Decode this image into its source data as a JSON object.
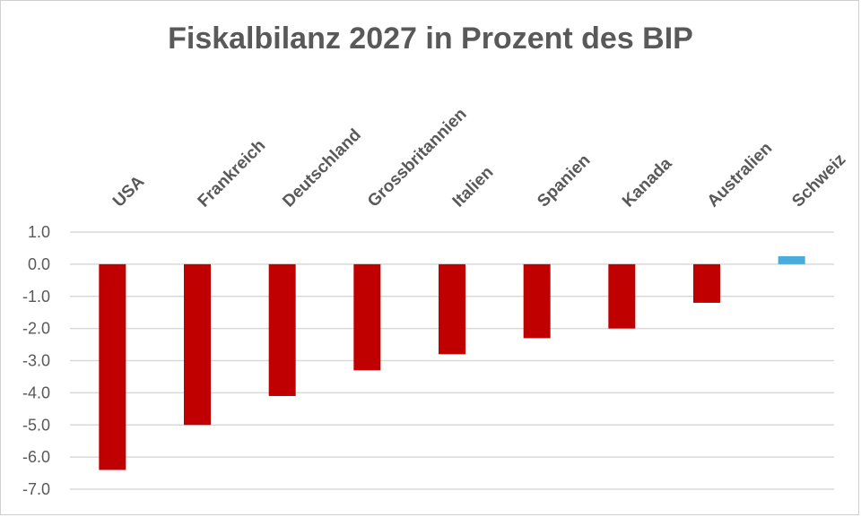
{
  "chart_data": {
    "type": "bar",
    "title": "Fiskalbilanz 2027 in Prozent des BIP",
    "xlabel": "",
    "ylabel": "",
    "categories": [
      "USA",
      "Frankreich",
      "Deutschland",
      "Grossbritannien",
      "Italien",
      "Spanien",
      "Kanada",
      "Australien",
      "Schweiz"
    ],
    "values": [
      -6.4,
      -5.0,
      -4.1,
      -3.3,
      -2.8,
      -2.3,
      -2.0,
      -1.2,
      0.25
    ],
    "ylim": [
      -7,
      1
    ],
    "yticks": [
      "1.0",
      "0.0",
      "-1.0",
      "-2.0",
      "-3.0",
      "-4.0",
      "-5.0",
      "-6.0",
      "-7.0"
    ],
    "ytick_values": [
      1,
      0,
      -1,
      -2,
      -3,
      -4,
      -5,
      -6,
      -7
    ],
    "grid": true,
    "legend": "none",
    "category_axis_position": "top, rotated labels",
    "colors": {
      "negative": "#c00000",
      "positive": "#4bacdc",
      "text": "#595959",
      "grid": "#d9d9d9"
    }
  }
}
